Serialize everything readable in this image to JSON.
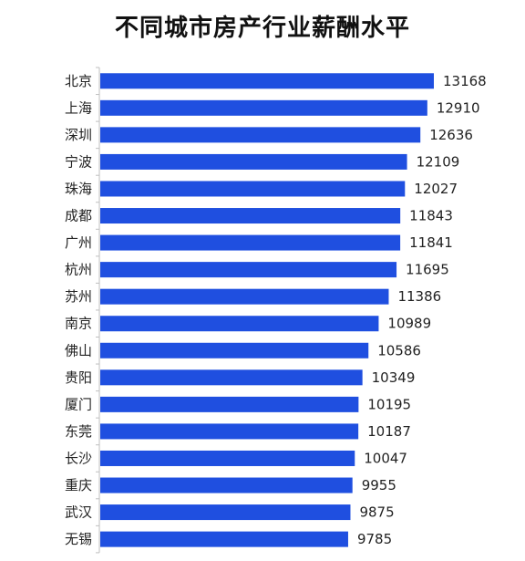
{
  "chart_data": {
    "type": "bar",
    "orientation": "horizontal",
    "title": "不同城市房产行业薪酬水平",
    "categories": [
      "北京",
      "上海",
      "深圳",
      "宁波",
      "珠海",
      "成都",
      "广州",
      "杭州",
      "苏州",
      "南京",
      "佛山",
      "贵阳",
      "厦门",
      "东莞",
      "长沙",
      "重庆",
      "武汉",
      "无锡"
    ],
    "values": [
      13168,
      12910,
      12636,
      12109,
      12027,
      11843,
      11841,
      11695,
      11386,
      10989,
      10586,
      10349,
      10195,
      10187,
      10047,
      9955,
      9875,
      9785
    ],
    "xlim": [
      0,
      13168
    ],
    "bar_color": "#1f4fe0",
    "axis_color": "#bfbfbf",
    "grid": false,
    "legend": "none",
    "data_labels": true
  }
}
